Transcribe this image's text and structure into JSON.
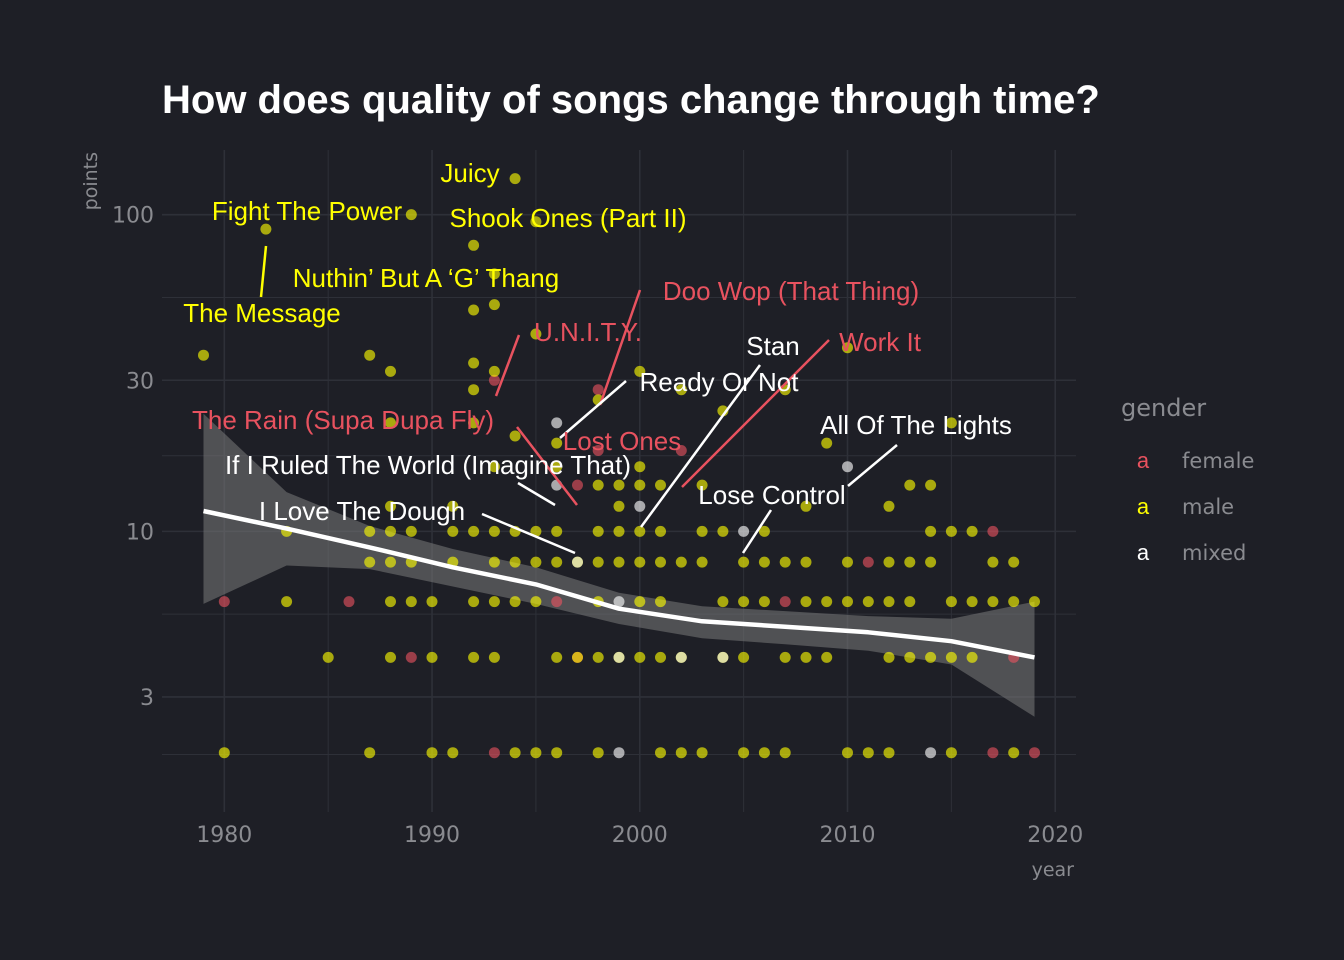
{
  "chart_data": {
    "type": "scatter",
    "title": "How does quality of songs change through time?",
    "xlabel": "year",
    "ylabel": "points",
    "x_scale": "linear",
    "y_scale": "log",
    "xlim": [
      1977,
      2021
    ],
    "ylim": [
      1.3,
      160
    ],
    "x_ticks": [
      1980,
      1990,
      2000,
      2010,
      2020
    ],
    "y_ticks": [
      3,
      10,
      30,
      100
    ],
    "x_tick_labels": [
      "1980",
      "1990",
      "2000",
      "2010",
      "2020"
    ],
    "y_tick_labels": [
      "3",
      "10",
      "30",
      "100"
    ],
    "grid": true,
    "colors": {
      "female": "#e8525f",
      "male": "#ffff00",
      "mixed": "#ffffff",
      "background": "#1e1f26",
      "grid": "#2e3038",
      "trend": "#ffffff",
      "band": "#7a7a7a"
    },
    "legend": {
      "title": "gender",
      "position": "right",
      "key_glyph": "a",
      "entries": [
        {
          "name": "female",
          "color": "#e8525f"
        },
        {
          "name": "male",
          "color": "#ffff00"
        },
        {
          "name": "mixed",
          "color": "#ffffff"
        }
      ]
    },
    "series": [
      {
        "name": "female",
        "color": "#e8525f",
        "points": [
          [
            1980,
            6
          ],
          [
            1986,
            6
          ],
          [
            1989,
            4
          ],
          [
            1993,
            30
          ],
          [
            1993,
            2
          ],
          [
            1996,
            6
          ],
          [
            1997,
            14
          ],
          [
            1997,
            4
          ],
          [
            1998,
            18
          ],
          [
            1998,
            28
          ],
          [
            2002,
            18
          ],
          [
            2007,
            6
          ],
          [
            2011,
            8
          ],
          [
            2017,
            10
          ],
          [
            2017,
            2
          ],
          [
            2018,
            4
          ],
          [
            2019,
            2
          ]
        ]
      },
      {
        "name": "male",
        "color": "#ffff00",
        "points": [
          [
            1979,
            36
          ],
          [
            1980,
            2
          ],
          [
            1982,
            90
          ],
          [
            1983,
            10
          ],
          [
            1983,
            6
          ],
          [
            1985,
            4
          ],
          [
            1987,
            36
          ],
          [
            1987,
            10
          ],
          [
            1987,
            8
          ],
          [
            1987,
            2
          ],
          [
            1988,
            32
          ],
          [
            1988,
            22
          ],
          [
            1988,
            12
          ],
          [
            1988,
            10
          ],
          [
            1988,
            8
          ],
          [
            1988,
            6
          ],
          [
            1988,
            4
          ],
          [
            1989,
            100
          ],
          [
            1989,
            10
          ],
          [
            1989,
            8
          ],
          [
            1989,
            6
          ],
          [
            1990,
            6
          ],
          [
            1990,
            4
          ],
          [
            1990,
            2
          ],
          [
            1991,
            12
          ],
          [
            1991,
            10
          ],
          [
            1991,
            8
          ],
          [
            1991,
            2
          ],
          [
            1992,
            80
          ],
          [
            1992,
            50
          ],
          [
            1992,
            34
          ],
          [
            1992,
            28
          ],
          [
            1992,
            22
          ],
          [
            1992,
            10
          ],
          [
            1992,
            6
          ],
          [
            1992,
            4
          ],
          [
            1993,
            65
          ],
          [
            1993,
            52
          ],
          [
            1993,
            32
          ],
          [
            1993,
            16
          ],
          [
            1993,
            10
          ],
          [
            1993,
            8
          ],
          [
            1993,
            6
          ],
          [
            1993,
            4
          ],
          [
            1994,
            130
          ],
          [
            1994,
            20
          ],
          [
            1994,
            10
          ],
          [
            1994,
            8
          ],
          [
            1994,
            6
          ],
          [
            1994,
            2
          ],
          [
            1995,
            95
          ],
          [
            1995,
            42
          ],
          [
            1995,
            10
          ],
          [
            1995,
            8
          ],
          [
            1995,
            6
          ],
          [
            1995,
            2
          ],
          [
            1996,
            19
          ],
          [
            1996,
            16
          ],
          [
            1996,
            10
          ],
          [
            1996,
            8
          ],
          [
            1996,
            4
          ],
          [
            1996,
            2
          ],
          [
            1997,
            8
          ],
          [
            1997,
            4
          ],
          [
            1998,
            26
          ],
          [
            1998,
            14
          ],
          [
            1998,
            10
          ],
          [
            1998,
            8
          ],
          [
            1998,
            6
          ],
          [
            1998,
            4
          ],
          [
            1998,
            2
          ],
          [
            1999,
            14
          ],
          [
            1999,
            12
          ],
          [
            1999,
            10
          ],
          [
            1999,
            8
          ],
          [
            1999,
            4
          ],
          [
            2000,
            32
          ],
          [
            2000,
            16
          ],
          [
            2000,
            14
          ],
          [
            2000,
            10
          ],
          [
            2000,
            8
          ],
          [
            2000,
            6
          ],
          [
            2000,
            4
          ],
          [
            2001,
            14
          ],
          [
            2001,
            10
          ],
          [
            2001,
            8
          ],
          [
            2001,
            6
          ],
          [
            2001,
            4
          ],
          [
            2001,
            2
          ],
          [
            2002,
            28
          ],
          [
            2002,
            8
          ],
          [
            2002,
            4
          ],
          [
            2002,
            2
          ],
          [
            2003,
            14
          ],
          [
            2003,
            10
          ],
          [
            2003,
            8
          ],
          [
            2003,
            2
          ],
          [
            2004,
            24
          ],
          [
            2004,
            10
          ],
          [
            2004,
            6
          ],
          [
            2004,
            4
          ],
          [
            2005,
            8
          ],
          [
            2005,
            6
          ],
          [
            2005,
            4
          ],
          [
            2005,
            2
          ],
          [
            2006,
            10
          ],
          [
            2006,
            8
          ],
          [
            2006,
            6
          ],
          [
            2006,
            2
          ],
          [
            2007,
            28
          ],
          [
            2007,
            8
          ],
          [
            2007,
            4
          ],
          [
            2007,
            2
          ],
          [
            2008,
            12
          ],
          [
            2008,
            8
          ],
          [
            2008,
            6
          ],
          [
            2008,
            4
          ],
          [
            2009,
            19
          ],
          [
            2009,
            6
          ],
          [
            2009,
            4
          ],
          [
            2010,
            38
          ],
          [
            2010,
            8
          ],
          [
            2010,
            6
          ],
          [
            2010,
            2
          ],
          [
            2011,
            6
          ],
          [
            2011,
            2
          ],
          [
            2012,
            12
          ],
          [
            2012,
            8
          ],
          [
            2012,
            6
          ],
          [
            2012,
            4
          ],
          [
            2012,
            2
          ],
          [
            2013,
            14
          ],
          [
            2013,
            8
          ],
          [
            2013,
            6
          ],
          [
            2013,
            4
          ],
          [
            2014,
            14
          ],
          [
            2014,
            10
          ],
          [
            2014,
            8
          ],
          [
            2014,
            4
          ],
          [
            2015,
            22
          ],
          [
            2015,
            10
          ],
          [
            2015,
            6
          ],
          [
            2015,
            4
          ],
          [
            2015,
            2
          ],
          [
            2016,
            10
          ],
          [
            2016,
            6
          ],
          [
            2016,
            4
          ],
          [
            2017,
            8
          ],
          [
            2017,
            6
          ],
          [
            2018,
            8
          ],
          [
            2018,
            6
          ],
          [
            2018,
            2
          ],
          [
            2019,
            6
          ]
        ]
      },
      {
        "name": "mixed",
        "color": "#ffffff",
        "points": [
          [
            1996,
            22
          ],
          [
            1996,
            14
          ],
          [
            1997,
            8
          ],
          [
            1999,
            6
          ],
          [
            1999,
            4
          ],
          [
            1999,
            2
          ],
          [
            2000,
            12
          ],
          [
            2002,
            4
          ],
          [
            2004,
            4
          ],
          [
            2005,
            10
          ],
          [
            2010,
            16
          ],
          [
            2014,
            2
          ]
        ]
      }
    ],
    "trend": {
      "type": "loess",
      "x": [
        1979,
        1983,
        1987,
        1991,
        1995,
        1999,
        2003,
        2007,
        2011,
        2015,
        2019
      ],
      "y": [
        11.6,
        10.2,
        8.9,
        7.7,
        6.8,
        5.7,
        5.2,
        5.0,
        4.8,
        4.5,
        4.0
      ],
      "ci_lower": [
        5.9,
        7.8,
        7.6,
        6.7,
        5.9,
        5.1,
        4.6,
        4.4,
        4.2,
        3.8,
        2.6
      ],
      "ci_upper": [
        23.5,
        13.3,
        10.4,
        8.8,
        7.7,
        6.4,
        5.8,
        5.6,
        5.4,
        5.3,
        6.0
      ]
    },
    "annotations": [
      {
        "text": "Juicy",
        "gender": "male",
        "x": 1994,
        "y": 130
      },
      {
        "text": "Fight The Power",
        "gender": "male",
        "x": 1989,
        "y": 100
      },
      {
        "text": "Shook Ones (Part II)",
        "gender": "male",
        "x": 1995,
        "y": 95
      },
      {
        "text": "Nuthin’ But A ‘G’ Thang",
        "gender": "male",
        "x": 1982,
        "y": 90
      },
      {
        "text": "The Message",
        "gender": "male",
        "x": 1982,
        "y": 90
      },
      {
        "text": "Doo Wop (That Thing)",
        "gender": "female",
        "x": 1998,
        "y": 28
      },
      {
        "text": "U.N.I.T.Y.",
        "gender": "female",
        "x": 1993,
        "y": 30
      },
      {
        "text": "Stan",
        "gender": "mixed",
        "x": 2000,
        "y": 12
      },
      {
        "text": "Work It",
        "gender": "female",
        "x": 2002,
        "y": 18
      },
      {
        "text": "Ready Or Not",
        "gender": "mixed",
        "x": 1996,
        "y": 22
      },
      {
        "text": "The Rain (Supa Dupa Fly)",
        "gender": "female",
        "x": 1997,
        "y": 14
      },
      {
        "text": "Lost Ones",
        "gender": "female",
        "x": 1998,
        "y": 18
      },
      {
        "text": "All Of The Lights",
        "gender": "mixed",
        "x": 2010,
        "y": 16
      },
      {
        "text": "If I Ruled The World (Imagine That)",
        "gender": "mixed",
        "x": 1996,
        "y": 14
      },
      {
        "text": "Lose Control",
        "gender": "mixed",
        "x": 2005,
        "y": 10
      },
      {
        "text": "I Love The Dough",
        "gender": "mixed",
        "x": 1997,
        "y": 10
      }
    ]
  }
}
